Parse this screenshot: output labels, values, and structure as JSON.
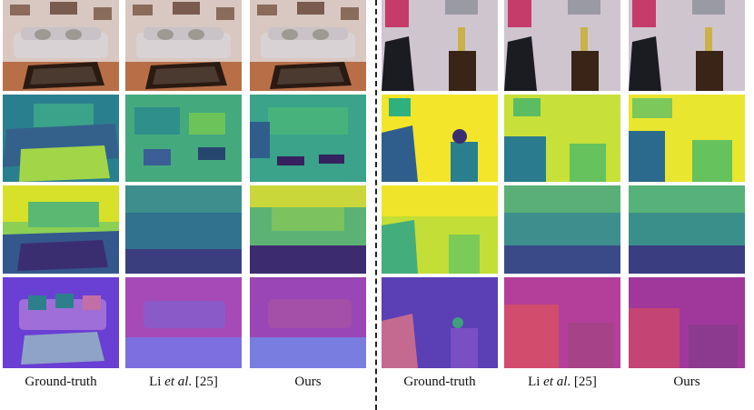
{
  "panels": [
    {
      "side": "left",
      "captions": [
        "Ground-truth",
        "Li",
        "Ours"
      ]
    },
    {
      "side": "right",
      "captions": [
        "Ground-truth",
        "Li",
        "Ours"
      ]
    }
  ],
  "captions": {
    "ground_truth": "Ground-truth",
    "li_name": "Li ",
    "li_etal": "et al",
    "li_ref": ". [25]",
    "ours": "Ours"
  },
  "colors": {
    "sofa": "#d8d2d4",
    "wall_left": "#d9c8c2",
    "wall_right": "#cfc5cf",
    "table": "#2a1a12",
    "chair": "#1b1b22",
    "viridis_yellow": "#f2e52a",
    "viridis_teal": "#2a7f8e",
    "viridis_purple": "#3a2e71",
    "normal_purple": "#6a3fd3",
    "normal_pink": "#d04a9a"
  }
}
